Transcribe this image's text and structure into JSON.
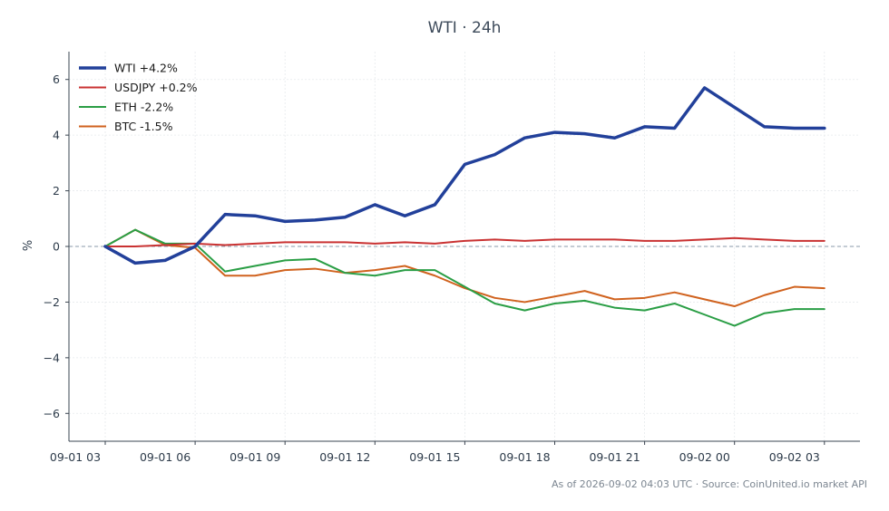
{
  "chart_data": {
    "type": "line",
    "title": "WTI · 24h",
    "xlabel": "",
    "ylabel": "%",
    "ylim": [
      -7,
      7
    ],
    "yticks": [
      -6,
      -4,
      -2,
      0,
      2,
      4,
      6
    ],
    "ytick_labels": [
      "−6",
      "−4",
      "−2",
      "0",
      "2",
      "4",
      "6"
    ],
    "xlim": [
      0,
      25
    ],
    "x_hours": [
      0,
      1,
      2,
      3,
      4,
      5,
      6,
      7,
      8,
      9,
      10,
      11,
      12,
      13,
      14,
      15,
      16,
      17,
      18,
      19,
      20,
      21,
      22,
      23,
      24
    ],
    "xtick_positions": [
      0,
      3,
      6,
      9,
      12,
      15,
      18,
      21,
      24
    ],
    "xtick_labels": [
      "09-01 03",
      "09-01 06",
      "09-01 09",
      "09-01 12",
      "09-01 15",
      "09-01 18",
      "09-01 21",
      "09-02 00",
      "09-02 03"
    ],
    "grid": true,
    "zero_line": true,
    "legend_position": "top-left",
    "series": [
      {
        "name": "WTI +4.2%",
        "color": "#22409a",
        "width": 3.5,
        "values": [
          0,
          -0.6,
          -0.5,
          0,
          1.15,
          1.1,
          0.9,
          0.95,
          1.05,
          1.5,
          1.1,
          1.5,
          2.95,
          3.3,
          3.9,
          4.1,
          4.05,
          3.9,
          4.3,
          4.25,
          5.7,
          5.0,
          4.3,
          4.25,
          4.25
        ]
      },
      {
        "name": "USDJPY +0.2%",
        "color": "#c93232",
        "width": 2,
        "values": [
          0,
          0,
          0.05,
          0.1,
          0.05,
          0.1,
          0.15,
          0.15,
          0.15,
          0.1,
          0.15,
          0.1,
          0.2,
          0.25,
          0.2,
          0.25,
          0.25,
          0.25,
          0.2,
          0.2,
          0.25,
          0.3,
          0.25,
          0.2,
          0.2
        ]
      },
      {
        "name": "ETH -2.2%",
        "color": "#2a9e45",
        "width": 2,
        "values": [
          0,
          0.6,
          0.1,
          0.1,
          -0.9,
          -0.7,
          -0.5,
          -0.45,
          -0.95,
          -1.05,
          -0.85,
          -0.85,
          -1.45,
          -2.05,
          -2.3,
          -2.05,
          -1.95,
          -2.2,
          -2.3,
          -2.05,
          -2.45,
          -2.85,
          -2.4,
          -2.25,
          -2.25
        ]
      },
      {
        "name": "BTC -1.5%",
        "color": "#d0621e",
        "width": 2,
        "values": [
          0,
          0.6,
          0.05,
          -0.05,
          -1.05,
          -1.05,
          -0.85,
          -0.8,
          -0.95,
          -0.85,
          -0.7,
          -1.05,
          -1.5,
          -1.85,
          -2.0,
          -1.8,
          -1.6,
          -1.9,
          -1.85,
          -1.65,
          -1.9,
          -2.15,
          -1.75,
          -1.45,
          -1.5
        ]
      }
    ],
    "footer": "As of 2026-09-02 04:03 UTC · Source: CoinUnited.io market API"
  }
}
